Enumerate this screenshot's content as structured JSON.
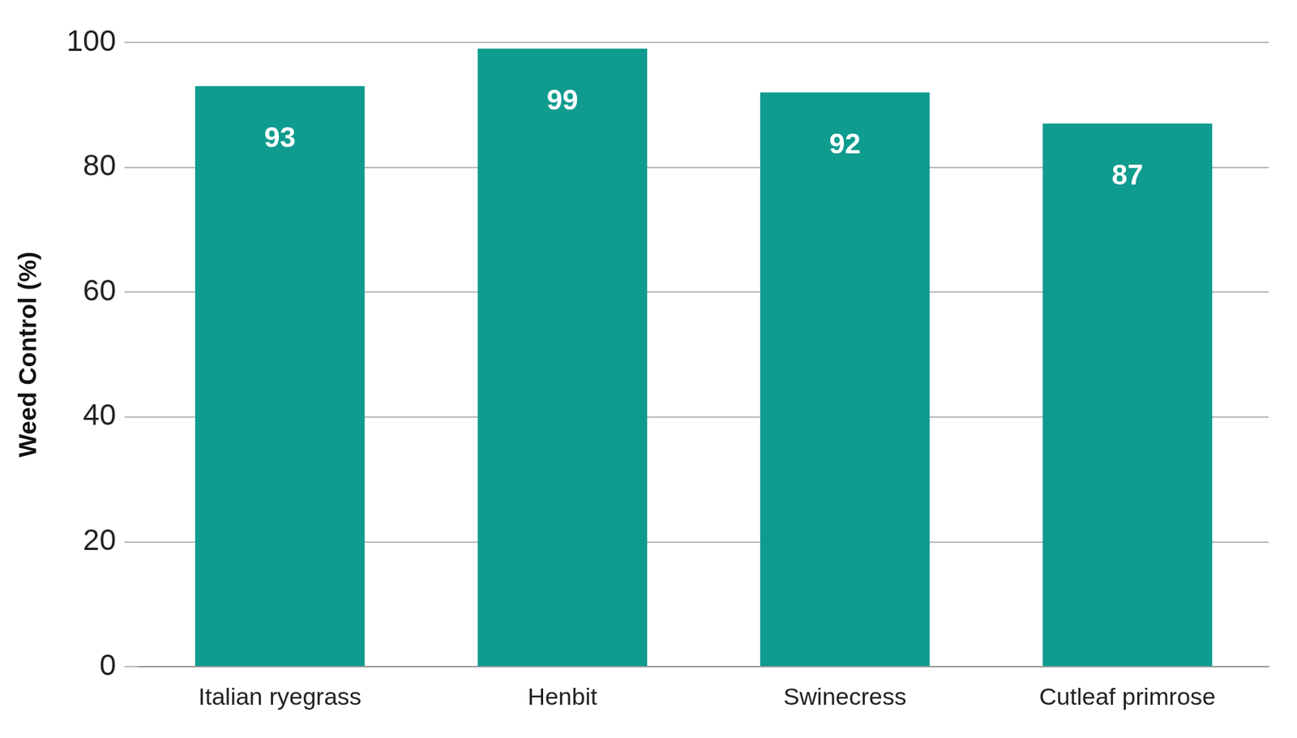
{
  "chart_data": {
    "type": "bar",
    "y_label": "Weed Control (%)",
    "categories": [
      "Italian ryegrass",
      "Henbit",
      "Swinecress",
      "Cutleaf primrose"
    ],
    "values": [
      93,
      99,
      92,
      87
    ],
    "color": "#0f9b8e",
    "ylim": [
      0,
      100
    ],
    "yticks": [
      0,
      20,
      40,
      60,
      80,
      100
    ],
    "grid": true,
    "data_labels": true
  }
}
